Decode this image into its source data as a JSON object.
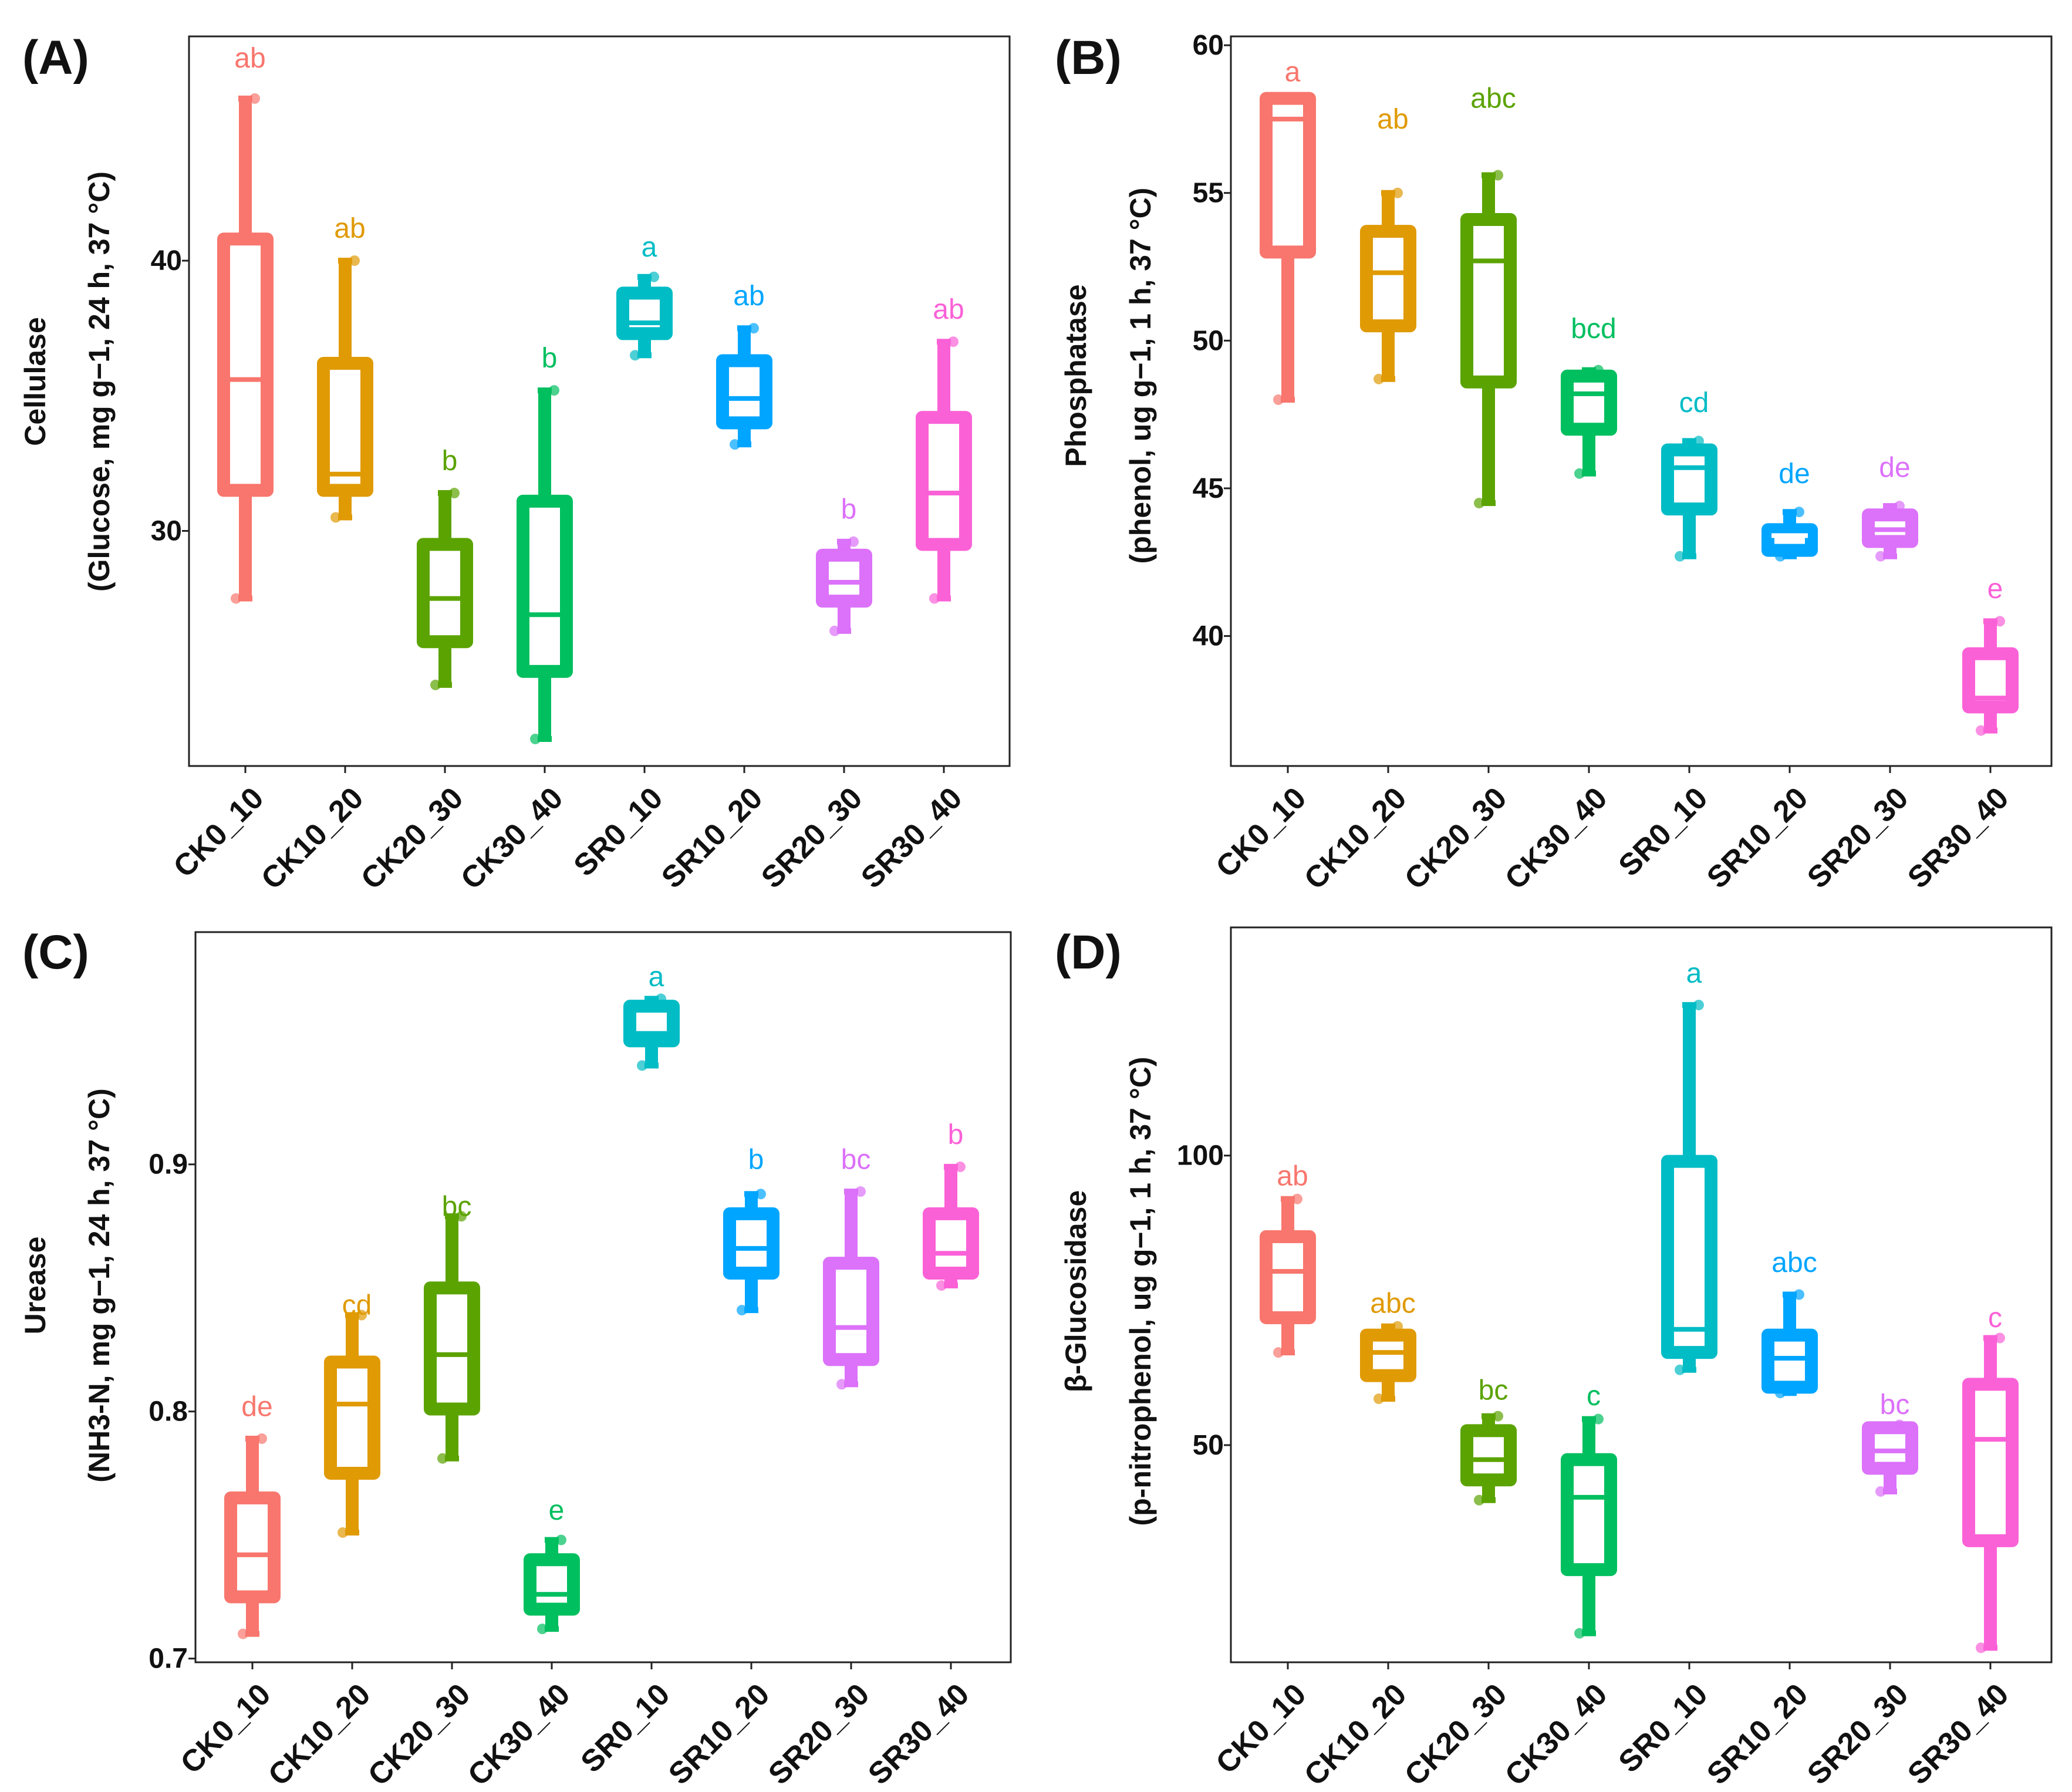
{
  "chart_data": [
    {
      "type": "box",
      "panel_label": "(A)",
      "title": "",
      "ylabel_line1": "Cellulase",
      "ylabel_line2": "(Glucose, mg g−1, 24 h, 37 °C)",
      "ylim": [
        21.3,
        48.3
      ],
      "yticks": [
        30,
        40
      ],
      "categories": [
        "CK0_10",
        "CK10_20",
        "CK20_30",
        "CK30_40",
        "SR0_10",
        "SR10_20",
        "SR20_30",
        "SR30_40"
      ],
      "colors": [
        "#F8766D",
        "#E09A04",
        "#5BA300",
        "#00BF5F",
        "#00BCC5",
        "#00A5FF",
        "#DC71FA",
        "#FB61D7"
      ],
      "boxes": [
        {
          "min": 27.5,
          "q1": 31.5,
          "median": 35.6,
          "q3": 40.8,
          "max": 46.0
        },
        {
          "min": 30.5,
          "q1": 31.5,
          "median": 32.1,
          "q3": 36.2,
          "max": 40.0
        },
        {
          "min": 24.3,
          "q1": 25.9,
          "median": 27.5,
          "q3": 29.5,
          "max": 31.4
        },
        {
          "min": 22.3,
          "q1": 24.8,
          "median": 26.9,
          "q3": 31.1,
          "max": 35.2
        },
        {
          "min": 36.5,
          "q1": 37.3,
          "median": 37.7,
          "q3": 38.8,
          "max": 39.4
        },
        {
          "min": 33.2,
          "q1": 34.0,
          "median": 34.9,
          "q3": 36.3,
          "max": 37.5
        },
        {
          "min": 26.3,
          "q1": 27.4,
          "median": 28.1,
          "q3": 29.1,
          "max": 29.6
        },
        {
          "min": 27.5,
          "q1": 29.5,
          "median": 31.4,
          "q3": 34.2,
          "max": 37.0
        }
      ],
      "letters": [
        "ab",
        "ab",
        "b",
        "b",
        "a",
        "ab",
        "b",
        "ab"
      ],
      "letter_values": [
        47.5,
        41.2,
        32.6,
        36.4,
        40.5,
        38.7,
        30.8,
        38.2
      ]
    },
    {
      "type": "box",
      "panel_label": "(B)",
      "title": "",
      "ylabel_line1": "Phosphatase",
      "ylabel_line2": "(phenol, ug g−1, 1 h, 37 °C)",
      "ylim": [
        35.6,
        60.3
      ],
      "yticks": [
        40,
        45,
        50,
        55,
        60
      ],
      "categories": [
        "CK0_10",
        "CK10_20",
        "CK20_30",
        "CK30_40",
        "SR0_10",
        "SR10_20",
        "SR20_30",
        "SR30_40"
      ],
      "colors": [
        "#F8766D",
        "#E09A04",
        "#5BA300",
        "#00BF5F",
        "#00BCC5",
        "#00A5FF",
        "#DC71FA",
        "#FB61D7"
      ],
      "boxes": [
        {
          "min": 48.0,
          "q1": 53.0,
          "median": 57.5,
          "q3": 58.2,
          "max": 58.2
        },
        {
          "min": 48.7,
          "q1": 50.5,
          "median": 52.3,
          "q3": 53.7,
          "max": 55.0
        },
        {
          "min": 44.5,
          "q1": 48.6,
          "median": 52.7,
          "q3": 54.1,
          "max": 55.6
        },
        {
          "min": 45.5,
          "q1": 47.0,
          "median": 48.2,
          "q3": 48.8,
          "max": 49.0
        },
        {
          "min": 42.7,
          "q1": 44.3,
          "median": 45.7,
          "q3": 46.3,
          "max": 46.6
        },
        {
          "min": 42.7,
          "q1": 42.9,
          "median": 43.4,
          "q3": 43.6,
          "max": 44.2
        },
        {
          "min": 42.7,
          "q1": 43.2,
          "median": 43.6,
          "q3": 44.1,
          "max": 44.4
        },
        {
          "min": 36.8,
          "q1": 37.6,
          "median": 37.9,
          "q3": 39.4,
          "max": 40.5
        }
      ],
      "letters": [
        "a",
        "ab",
        "abc",
        "bcd",
        "cd",
        "de",
        "de",
        "e"
      ],
      "letter_values": [
        59.1,
        57.5,
        58.2,
        50.4,
        47.9,
        45.5,
        45.7,
        41.6
      ]
    },
    {
      "type": "box",
      "panel_label": "(C)",
      "title": "",
      "ylabel_line1": "Urease",
      "ylabel_line2": "(NH3-N, mg g−1, 24 h, 37 °C)",
      "ylim": [
        0.6985,
        0.994
      ],
      "yticks": [
        0.7,
        0.8,
        0.9
      ],
      "categories": [
        "CK0_10",
        "CK10_20",
        "CK20_30",
        "CK30_40",
        "SR0_10",
        "SR10_20",
        "SR20_30",
        "SR30_40"
      ],
      "colors": [
        "#F8766D",
        "#E09A04",
        "#5BA300",
        "#00BF5F",
        "#00BCC5",
        "#00A5FF",
        "#DC71FA",
        "#FB61D7"
      ],
      "boxes": [
        {
          "min": 0.71,
          "q1": 0.725,
          "median": 0.742,
          "q3": 0.765,
          "max": 0.789
        },
        {
          "min": 0.751,
          "q1": 0.775,
          "median": 0.803,
          "q3": 0.82,
          "max": 0.839
        },
        {
          "min": 0.781,
          "q1": 0.801,
          "median": 0.823,
          "q3": 0.85,
          "max": 0.879
        },
        {
          "min": 0.712,
          "q1": 0.72,
          "median": 0.726,
          "q3": 0.74,
          "max": 0.748
        },
        {
          "min": 0.94,
          "q1": 0.95,
          "median": 0.953,
          "q3": 0.964,
          "max": 0.967
        },
        {
          "min": 0.841,
          "q1": 0.856,
          "median": 0.866,
          "q3": 0.88,
          "max": 0.888
        },
        {
          "min": 0.811,
          "q1": 0.821,
          "median": 0.834,
          "q3": 0.86,
          "max": 0.889
        },
        {
          "min": 0.851,
          "q1": 0.856,
          "median": 0.864,
          "q3": 0.88,
          "max": 0.899
        }
      ],
      "letters": [
        "de",
        "cd",
        "bc",
        "e",
        "a",
        "b",
        "bc",
        "b"
      ],
      "letter_values": [
        0.802,
        0.843,
        0.883,
        0.76,
        0.976,
        0.902,
        0.902,
        0.912
      ]
    },
    {
      "type": "box",
      "panel_label": "(D)",
      "title": "",
      "ylabel_line1": "β-Glucosidase",
      "ylabel_line2": "(p-nitrophenol, ug g−1, 1 h, 37 °C)",
      "ylim": [
        12.5,
        139.4
      ],
      "yticks": [
        50,
        100
      ],
      "categories": [
        "CK0_10",
        "CK10_20",
        "CK20_30",
        "CK30_40",
        "SR0_10",
        "SR10_20",
        "SR20_30",
        "SR30_40"
      ],
      "colors": [
        "#F8766D",
        "#E09A04",
        "#5BA300",
        "#00BF5F",
        "#00BCC5",
        "#00A5FF",
        "#DC71FA",
        "#FB61D7"
      ],
      "boxes": [
        {
          "min": 66.0,
          "q1": 72.0,
          "median": 80.0,
          "q3": 86.0,
          "max": 92.5
        },
        {
          "min": 58.0,
          "q1": 62.0,
          "median": 66.0,
          "q3": 69.0,
          "max": 70.5
        },
        {
          "min": 40.5,
          "q1": 44.0,
          "median": 47.5,
          "q3": 52.5,
          "max": 55.0
        },
        {
          "min": 17.5,
          "q1": 28.5,
          "median": 41.0,
          "q3": 47.5,
          "max": 54.5
        },
        {
          "min": 63.0,
          "q1": 66.0,
          "median": 70.0,
          "q3": 99.0,
          "max": 126.0
        },
        {
          "min": 59.0,
          "q1": 60.0,
          "median": 65.0,
          "q3": 69.0,
          "max": 76.0
        },
        {
          "min": 42.0,
          "q1": 46.0,
          "median": 49.0,
          "q3": 53.0,
          "max": 53.5
        },
        {
          "min": 15.0,
          "q1": 33.5,
          "median": 51.0,
          "q3": 60.5,
          "max": 68.5
        }
      ],
      "letters": [
        "ab",
        "abc",
        "bc",
        "c",
        "a",
        "abc",
        "bc",
        "c"
      ],
      "letter_values": [
        96.5,
        74.5,
        59.5,
        58.5,
        131.5,
        81.5,
        57.0,
        72.0
      ]
    }
  ]
}
